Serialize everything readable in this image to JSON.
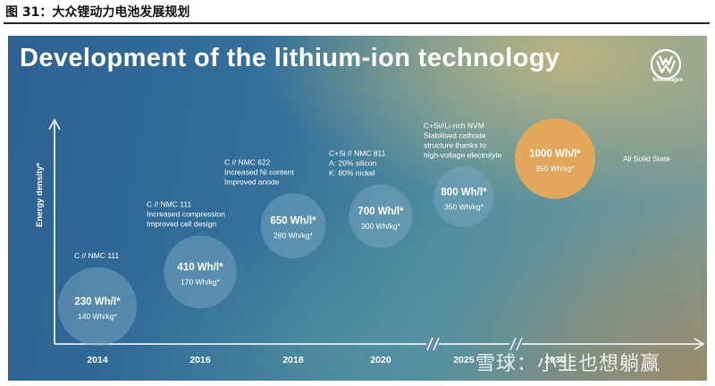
{
  "figure_caption": "图 31：大众锂动力电池发展规划",
  "slide": {
    "title": "Development of the lithium-ion technology",
    "brand": "Volkswagen"
  },
  "colors": {
    "bubble": "#7aa8c4",
    "highlight": "#e8a85a",
    "axis": "#ffffff"
  },
  "watermark": "雪球：小韭也想躺赢",
  "chart_data": {
    "type": "scatter",
    "title": "",
    "xlabel": "",
    "ylabel": "Energy density*",
    "x_ticks": [
      "2014",
      "2016",
      "2018",
      "2020",
      "2025",
      "2030"
    ],
    "axis_breaks_after": [
      "2020",
      "2025"
    ],
    "grid": false,
    "series": [
      {
        "points": [
          {
            "x": "2014",
            "value": "230 Wh/l*",
            "wh_per_l": 230,
            "sub": "140 Wh/kg*",
            "wh_per_kg": 140,
            "note": [
              "C // NMC 111"
            ]
          },
          {
            "x": "2016",
            "value": "410 Wh/l*",
            "wh_per_l": 410,
            "sub": "170 Wh/kg*",
            "wh_per_kg": 170,
            "note": [
              "C // NMC 111",
              "Increased compression",
              "Improved cell design"
            ]
          },
          {
            "x": "2018",
            "value": "650 Wh/l*",
            "wh_per_l": 650,
            "sub": "280 Wh/kg*",
            "wh_per_kg": 280,
            "note": [
              "C // NMC 622",
              "Increased Ni content",
              "Improved anode"
            ]
          },
          {
            "x": "2020",
            "value": "700 Wh/l*",
            "wh_per_l": 700,
            "sub": "300 Wh/kg*",
            "wh_per_kg": 300,
            "note": [
              "C+Si  // NMC 811",
              "A: 20% silicon",
              "K: 80% nickel"
            ]
          },
          {
            "x": "2025",
            "value": "800 Wh/l*",
            "wh_per_l": 800,
            "sub": "350 Wh/kg*",
            "wh_per_kg": 350,
            "note": [
              "C+Si//Li-rich NVM",
              "Stabilised cathode",
              "structure thanks to",
              "high-voltage electrolyte"
            ]
          },
          {
            "x": "2030",
            "value": "1000 Wh/l*",
            "wh_per_l": 1000,
            "sub": "350 Wh/kg*",
            "wh_per_kg": 350,
            "note": [
              "All Solid State"
            ],
            "highlight": true
          }
        ]
      }
    ]
  }
}
